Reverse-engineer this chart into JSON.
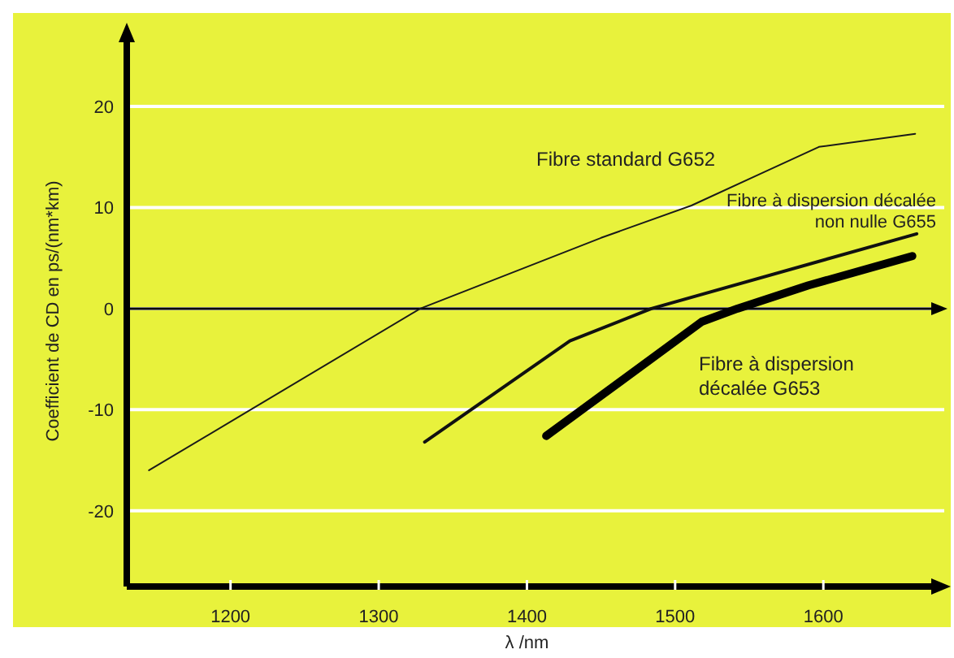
{
  "chart_data": {
    "type": "line",
    "xlabel": "λ /nm",
    "ylabel": "Coefficient de CD en ps/(nm*km)",
    "xlim": [
      1130,
      1675
    ],
    "ylim": [
      -27.5,
      27
    ],
    "xticks": [
      1200,
      1300,
      1400,
      1500,
      1600
    ],
    "yticks": [
      -20,
      -10,
      0,
      10,
      20
    ],
    "grid": "y",
    "marker": "none",
    "line_style": "solid",
    "series": [
      {
        "name": "Fibre standard G652",
        "color": "#1a1a1a",
        "x": [
          1145,
          1328,
          1450,
          1511,
          1560,
          1597,
          1662
        ],
        "values": [
          -16,
          0,
          7,
          10.2,
          13.5,
          16,
          17.3
        ]
      },
      {
        "name": "Fibre à dispersion décalée non nulle G655",
        "color": "#111111",
        "x": [
          1331,
          1429,
          1484,
          1663
        ],
        "values": [
          -13.2,
          -3.2,
          0,
          7.4
        ]
      },
      {
        "name": "Fibre à dispersion décalée G653",
        "color": "#000000",
        "x": [
          1413,
          1518,
          1542,
          1590,
          1660
        ],
        "values": [
          -12.6,
          -1.3,
          0,
          2.3,
          5.2
        ]
      }
    ]
  }
}
